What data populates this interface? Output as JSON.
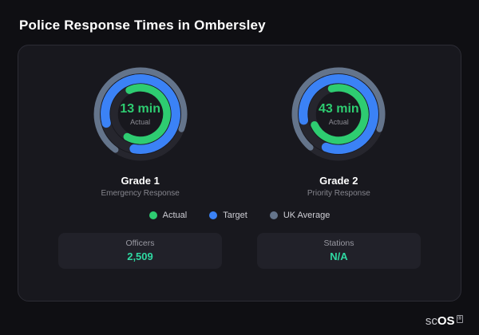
{
  "page": {
    "title": "Police Response Times in Ombersley",
    "brand": {
      "prefix": "sc",
      "suffix": "OS",
      "reg": "®"
    }
  },
  "colors": {
    "gauge_value": "#2ecc71",
    "stat_value": "#2fd9a2",
    "track": "#26262e"
  },
  "legend": {
    "items": [
      {
        "label": "Actual",
        "color": "#2ecc71"
      },
      {
        "label": "Target",
        "color": "#3b82f6"
      },
      {
        "label": "UK Average",
        "color": "#64748b"
      }
    ]
  },
  "stats": [
    {
      "label": "Officers",
      "value": "2,509"
    },
    {
      "label": "Stations",
      "value": "N/A"
    }
  ],
  "chart_data": [
    {
      "type": "pie",
      "variant": "concentric-gauge",
      "title": "Grade 1",
      "subtitle": "Emergency Response",
      "center_value": "13 min",
      "center_label": "Actual",
      "rings": [
        {
          "name": "UK Average",
          "color": "#64748b",
          "start_deg": -145,
          "sweep_deg": 255
        },
        {
          "name": "Target",
          "color": "#3b82f6",
          "start_deg": -105,
          "sweep_deg": 295
        },
        {
          "name": "Actual",
          "color": "#2ecc71",
          "start_deg": -25,
          "sweep_deg": 235
        }
      ]
    },
    {
      "type": "pie",
      "variant": "concentric-gauge",
      "title": "Grade 2",
      "subtitle": "Priority Response",
      "center_value": "43 min",
      "center_label": "Actual",
      "rings": [
        {
          "name": "UK Average",
          "color": "#64748b",
          "start_deg": -140,
          "sweep_deg": 250
        },
        {
          "name": "Target",
          "color": "#3b82f6",
          "start_deg": -100,
          "sweep_deg": 300
        },
        {
          "name": "Actual",
          "color": "#2ecc71",
          "start_deg": -15,
          "sweep_deg": 260
        }
      ]
    }
  ]
}
